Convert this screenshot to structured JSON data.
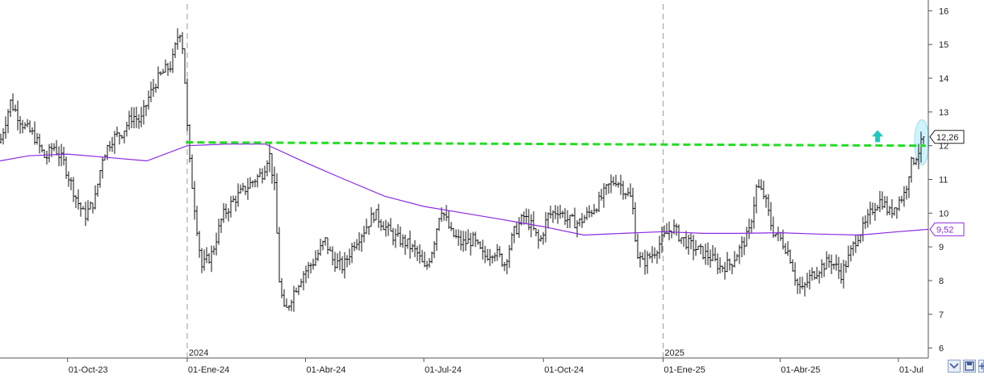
{
  "chart_data": {
    "type": "ohlc",
    "title": "",
    "xlabel": "",
    "ylabel": "",
    "ylim": [
      5.8,
      16.2
    ],
    "y_ticks": [
      6,
      7,
      8,
      9,
      10,
      11,
      12,
      13,
      14,
      15,
      16
    ],
    "x_range": [
      "2023-08-10",
      "2025-07-24"
    ],
    "x_ticks": [
      {
        "date": "2023-10-01",
        "label": "01-Oct-23"
      },
      {
        "date": "2024-01-01",
        "label": "01-Ene-24"
      },
      {
        "date": "2024-04-01",
        "label": "01-Abr-24"
      },
      {
        "date": "2024-07-01",
        "label": "01-Jul-24"
      },
      {
        "date": "2024-10-01",
        "label": "01-Oct-24"
      },
      {
        "date": "2025-01-01",
        "label": "01-Ene-25"
      },
      {
        "date": "2025-04-01",
        "label": "01-Abr-25"
      },
      {
        "date": "2025-07-01",
        "label": "01-Jul"
      }
    ],
    "year_separators": [
      {
        "date": "2024-01-01",
        "label": "2024"
      },
      {
        "date": "2025-01-01",
        "label": "2025"
      }
    ],
    "price_path": [
      [
        "2023-08-10",
        12.1
      ],
      [
        "2023-08-18",
        13.3
      ],
      [
        "2023-08-28",
        12.6
      ],
      [
        "2023-09-05",
        12.3
      ],
      [
        "2023-09-14",
        11.6
      ],
      [
        "2023-09-20",
        12.0
      ],
      [
        "2023-09-28",
        11.5
      ],
      [
        "2023-10-08",
        10.4
      ],
      [
        "2023-10-14",
        9.9
      ],
      [
        "2023-10-22",
        10.4
      ],
      [
        "2023-10-28",
        11.7
      ],
      [
        "2023-11-04",
        12.2
      ],
      [
        "2023-11-12",
        12.4
      ],
      [
        "2023-11-20",
        12.9
      ],
      [
        "2023-11-26",
        12.7
      ],
      [
        "2023-12-02",
        13.4
      ],
      [
        "2023-12-08",
        13.9
      ],
      [
        "2023-12-14",
        14.2
      ],
      [
        "2023-12-20",
        14.4
      ],
      [
        "2023-12-26",
        15.5
      ],
      [
        "2023-12-29",
        14.8
      ],
      [
        "2024-01-02",
        11.8
      ],
      [
        "2024-01-06",
        10.4
      ],
      [
        "2024-01-12",
        8.4
      ],
      [
        "2024-01-20",
        8.8
      ],
      [
        "2024-01-28",
        9.9
      ],
      [
        "2024-02-06",
        10.4
      ],
      [
        "2024-02-14",
        10.7
      ],
      [
        "2024-02-22",
        11.0
      ],
      [
        "2024-02-28",
        11.2
      ],
      [
        "2024-03-04",
        11.8
      ],
      [
        "2024-03-08",
        10.8
      ],
      [
        "2024-03-12",
        7.9
      ],
      [
        "2024-03-16",
        7.0
      ],
      [
        "2024-03-22",
        7.6
      ],
      [
        "2024-03-30",
        8.2
      ],
      [
        "2024-04-08",
        8.6
      ],
      [
        "2024-04-16",
        9.2
      ],
      [
        "2024-04-22",
        8.6
      ],
      [
        "2024-04-30",
        8.4
      ],
      [
        "2024-05-08",
        9.1
      ],
      [
        "2024-05-16",
        9.5
      ],
      [
        "2024-05-24",
        10.0
      ],
      [
        "2024-06-01",
        9.6
      ],
      [
        "2024-06-08",
        9.3
      ],
      [
        "2024-06-18",
        9.1
      ],
      [
        "2024-06-26",
        8.8
      ],
      [
        "2024-07-02",
        8.3
      ],
      [
        "2024-07-08",
        9.0
      ],
      [
        "2024-07-14",
        10.2
      ],
      [
        "2024-07-22",
        9.4
      ],
      [
        "2024-07-30",
        9.1
      ],
      [
        "2024-08-08",
        9.2
      ],
      [
        "2024-08-16",
        8.7
      ],
      [
        "2024-08-24",
        8.9
      ],
      [
        "2024-09-01",
        8.5
      ],
      [
        "2024-09-08",
        9.4
      ],
      [
        "2024-09-16",
        9.9
      ],
      [
        "2024-09-22",
        9.6
      ],
      [
        "2024-09-28",
        9.1
      ],
      [
        "2024-10-04",
        9.9
      ],
      [
        "2024-10-12",
        10.1
      ],
      [
        "2024-10-20",
        9.8
      ],
      [
        "2024-10-28",
        9.7
      ],
      [
        "2024-11-05",
        10.0
      ],
      [
        "2024-11-12",
        10.3
      ],
      [
        "2024-11-20",
        10.8
      ],
      [
        "2024-11-26",
        11.0
      ],
      [
        "2024-12-02",
        10.7
      ],
      [
        "2024-12-08",
        10.4
      ],
      [
        "2024-12-12",
        8.8
      ],
      [
        "2024-12-16",
        8.5
      ],
      [
        "2024-12-24",
        8.8
      ],
      [
        "2025-01-02",
        9.3
      ],
      [
        "2025-01-08",
        9.6
      ],
      [
        "2025-01-14",
        9.3
      ],
      [
        "2025-01-20",
        9.1
      ],
      [
        "2025-01-28",
        8.9
      ],
      [
        "2025-02-06",
        8.7
      ],
      [
        "2025-02-14",
        8.4
      ],
      [
        "2025-02-22",
        8.5
      ],
      [
        "2025-03-02",
        9.0
      ],
      [
        "2025-03-08",
        9.4
      ],
      [
        "2025-03-14",
        10.8
      ],
      [
        "2025-03-20",
        10.5
      ],
      [
        "2025-03-26",
        9.5
      ],
      [
        "2025-04-02",
        9.2
      ],
      [
        "2025-04-08",
        8.8
      ],
      [
        "2025-04-14",
        7.9
      ],
      [
        "2025-04-18",
        7.7
      ],
      [
        "2025-04-24",
        8.1
      ],
      [
        "2025-05-02",
        8.4
      ],
      [
        "2025-05-10",
        8.6
      ],
      [
        "2025-05-18",
        8.2
      ],
      [
        "2025-05-24",
        8.7
      ],
      [
        "2025-05-30",
        9.3
      ],
      [
        "2025-06-05",
        9.6
      ],
      [
        "2025-06-12",
        10.2
      ],
      [
        "2025-06-18",
        10.4
      ],
      [
        "2025-06-24",
        10.0
      ],
      [
        "2025-06-30",
        10.3
      ],
      [
        "2025-07-06",
        10.6
      ],
      [
        "2025-07-10",
        11.4
      ],
      [
        "2025-07-16",
        11.8
      ],
      [
        "2025-07-21",
        12.26
      ]
    ],
    "series": [
      {
        "kind": "moving_average",
        "color": "#8a2be2",
        "points": [
          [
            "2023-08-10",
            11.55
          ],
          [
            "2023-09-01",
            11.7
          ],
          [
            "2023-10-01",
            11.75
          ],
          [
            "2023-11-01",
            11.65
          ],
          [
            "2023-12-01",
            11.55
          ],
          [
            "2024-01-01",
            12.0
          ],
          [
            "2024-02-01",
            12.05
          ],
          [
            "2024-03-01",
            12.05
          ],
          [
            "2024-04-01",
            11.5
          ],
          [
            "2024-05-01",
            11.0
          ],
          [
            "2024-06-01",
            10.5
          ],
          [
            "2024-07-01",
            10.2
          ],
          [
            "2024-08-01",
            10.0
          ],
          [
            "2024-09-01",
            9.8
          ],
          [
            "2024-10-01",
            9.6
          ],
          [
            "2024-11-01",
            9.35
          ],
          [
            "2024-12-01",
            9.4
          ],
          [
            "2025-01-01",
            9.45
          ],
          [
            "2025-02-01",
            9.4
          ],
          [
            "2025-03-01",
            9.4
          ],
          [
            "2025-04-01",
            9.42
          ],
          [
            "2025-05-01",
            9.38
          ],
          [
            "2025-06-01",
            9.35
          ],
          [
            "2025-07-01",
            9.45
          ],
          [
            "2025-07-24",
            9.52
          ]
        ]
      },
      {
        "kind": "resistance_line",
        "color": "#22dd22",
        "points": [
          [
            "2023-12-31",
            12.1
          ],
          [
            "2025-07-22",
            12.0
          ]
        ]
      }
    ],
    "price_tags": [
      {
        "value": 12.26,
        "label": "12,26",
        "color": "#222222"
      },
      {
        "value": 9.52,
        "label": "9,52",
        "color": "#8a2be2"
      }
    ],
    "annotations": [
      {
        "kind": "up-arrow-icon",
        "date": "2025-06-15",
        "value": 12.25,
        "color": "#22c8c0"
      },
      {
        "kind": "highlight-ellipse",
        "date": "2025-07-19",
        "value": 12.1,
        "color": "#bfefff"
      }
    ],
    "grid": false,
    "legend": "none"
  }
}
